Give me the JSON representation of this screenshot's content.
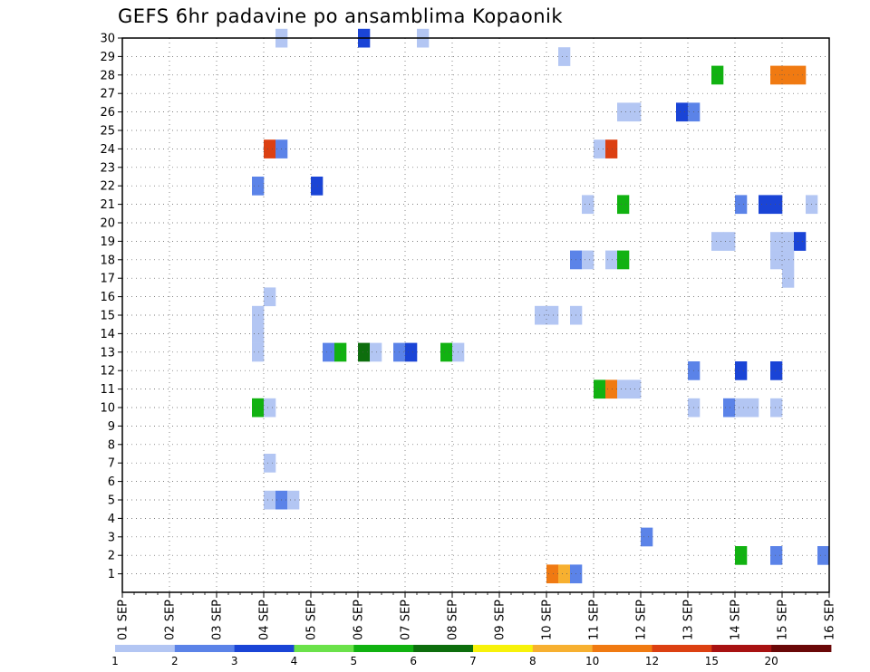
{
  "chart_data": {
    "type": "heatmap",
    "title": "GEFS 6hr padavine po ansamblima Kopaonik",
    "xlabel": "",
    "ylabel": "",
    "x_tick_labels": [
      "01 SEP",
      "02 SEP",
      "03 SEP",
      "04 SEP",
      "05 SEP",
      "06 SEP",
      "07 SEP",
      "08 SEP",
      "09 SEP",
      "10 SEP",
      "11 SEP",
      "12 SEP",
      "13 SEP",
      "14 SEP",
      "15 SEP",
      "16 SEP"
    ],
    "x_range": [
      0,
      60
    ],
    "x_unit": "6-hour steps from 01 SEP",
    "y_tick_labels": [
      1,
      2,
      3,
      4,
      5,
      6,
      7,
      8,
      9,
      10,
      11,
      12,
      13,
      14,
      15,
      16,
      17,
      18,
      19,
      20,
      21,
      22,
      23,
      24,
      25,
      26,
      27,
      28,
      29,
      30
    ],
    "y_range": [
      0,
      30
    ],
    "grid": true,
    "legend": {
      "placement": "bottom",
      "labels": [
        "1",
        "2",
        "3",
        "4",
        "5",
        "6",
        "7",
        "8",
        "10",
        "12",
        "15",
        "20"
      ],
      "colors": [
        "#b3c6f3",
        "#5b83e8",
        "#1a44d6",
        "#6be24a",
        "#11b211",
        "#0d6e0d",
        "#f7f20a",
        "#f7b030",
        "#f07a12",
        "#dc4012",
        "#a81212",
        "#6a0808"
      ]
    },
    "cells": [
      {
        "member": 30,
        "step": 13,
        "value": 1
      },
      {
        "member": 30,
        "step": 20,
        "value": 3
      },
      {
        "member": 30,
        "step": 25,
        "value": 1
      },
      {
        "member": 29,
        "step": 37,
        "value": 1
      },
      {
        "member": 28,
        "step": 50,
        "value": 5
      },
      {
        "member": 28,
        "step": 55,
        "value": 10
      },
      {
        "member": 28,
        "step": 56,
        "value": 10
      },
      {
        "member": 28,
        "step": 57,
        "value": 10
      },
      {
        "member": 26,
        "step": 42,
        "value": 1
      },
      {
        "member": 26,
        "step": 43,
        "value": 1
      },
      {
        "member": 26,
        "step": 47,
        "value": 3
      },
      {
        "member": 26,
        "step": 48,
        "value": 2
      },
      {
        "member": 24,
        "step": 12,
        "value": 12
      },
      {
        "member": 24,
        "step": 13,
        "value": 2
      },
      {
        "member": 24,
        "step": 40,
        "value": 1
      },
      {
        "member": 24,
        "step": 41,
        "value": 12
      },
      {
        "member": 22,
        "step": 11,
        "value": 2
      },
      {
        "member": 22,
        "step": 16,
        "value": 3
      },
      {
        "member": 21,
        "step": 39,
        "value": 1
      },
      {
        "member": 21,
        "step": 42,
        "value": 5
      },
      {
        "member": 21,
        "step": 52,
        "value": 2
      },
      {
        "member": 21,
        "step": 54,
        "value": 3
      },
      {
        "member": 21,
        "step": 55,
        "value": 3
      },
      {
        "member": 21,
        "step": 58,
        "value": 1
      },
      {
        "member": 19,
        "step": 50,
        "value": 1
      },
      {
        "member": 19,
        "step": 51,
        "value": 1
      },
      {
        "member": 19,
        "step": 55,
        "value": 1
      },
      {
        "member": 19,
        "step": 56,
        "value": 1
      },
      {
        "member": 19,
        "step": 57,
        "value": 3
      },
      {
        "member": 18,
        "step": 38,
        "value": 2
      },
      {
        "member": 18,
        "step": 39,
        "value": 1
      },
      {
        "member": 18,
        "step": 41,
        "value": 1
      },
      {
        "member": 18,
        "step": 42,
        "value": 5
      },
      {
        "member": 18,
        "step": 55,
        "value": 1
      },
      {
        "member": 18,
        "step": 56,
        "value": 1
      },
      {
        "member": 17,
        "step": 56,
        "value": 1
      },
      {
        "member": 16,
        "step": 12,
        "value": 1
      },
      {
        "member": 15,
        "step": 11,
        "value": 1
      },
      {
        "member": 15,
        "step": 35,
        "value": 1
      },
      {
        "member": 15,
        "step": 36,
        "value": 1
      },
      {
        "member": 15,
        "step": 38,
        "value": 1
      },
      {
        "member": 14,
        "step": 11,
        "value": 1
      },
      {
        "member": 13,
        "step": 11,
        "value": 1
      },
      {
        "member": 13,
        "step": 17,
        "value": 2
      },
      {
        "member": 13,
        "step": 18,
        "value": 5
      },
      {
        "member": 13,
        "step": 20,
        "value": 6
      },
      {
        "member": 13,
        "step": 21,
        "value": 1
      },
      {
        "member": 13,
        "step": 23,
        "value": 2
      },
      {
        "member": 13,
        "step": 24,
        "value": 3
      },
      {
        "member": 13,
        "step": 27,
        "value": 5
      },
      {
        "member": 13,
        "step": 28,
        "value": 1
      },
      {
        "member": 12,
        "step": 48,
        "value": 2
      },
      {
        "member": 12,
        "step": 52,
        "value": 3
      },
      {
        "member": 12,
        "step": 55,
        "value": 3
      },
      {
        "member": 11,
        "step": 40,
        "value": 5
      },
      {
        "member": 11,
        "step": 41,
        "value": 10
      },
      {
        "member": 11,
        "step": 42,
        "value": 1
      },
      {
        "member": 11,
        "step": 43,
        "value": 1
      },
      {
        "member": 10,
        "step": 11,
        "value": 5
      },
      {
        "member": 10,
        "step": 12,
        "value": 1
      },
      {
        "member": 10,
        "step": 48,
        "value": 1
      },
      {
        "member": 10,
        "step": 51,
        "value": 2
      },
      {
        "member": 10,
        "step": 52,
        "value": 1
      },
      {
        "member": 10,
        "step": 53,
        "value": 1
      },
      {
        "member": 10,
        "step": 55,
        "value": 1
      },
      {
        "member": 7,
        "step": 12,
        "value": 1
      },
      {
        "member": 5,
        "step": 12,
        "value": 1
      },
      {
        "member": 5,
        "step": 13,
        "value": 2
      },
      {
        "member": 5,
        "step": 14,
        "value": 1
      },
      {
        "member": 3,
        "step": 44,
        "value": 2
      },
      {
        "member": 2,
        "step": 52,
        "value": 5
      },
      {
        "member": 2,
        "step": 55,
        "value": 2
      },
      {
        "member": 2,
        "step": 59,
        "value": 2
      },
      {
        "member": 1,
        "step": 36,
        "value": 10
      },
      {
        "member": 1,
        "step": 37,
        "value": 8
      },
      {
        "member": 1,
        "step": 38,
        "value": 2
      }
    ]
  }
}
